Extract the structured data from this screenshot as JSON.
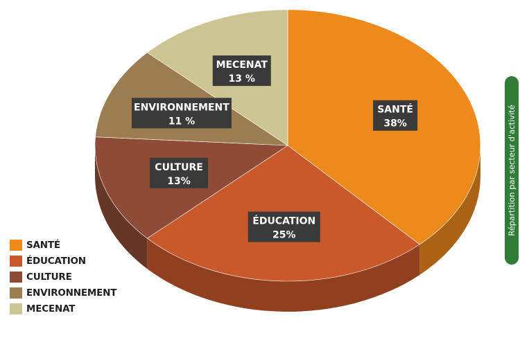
{
  "side_tab": {
    "label": "Répartition par secteur d'activité"
  },
  "colors": {
    "sante": "#ec8a1c",
    "education": "#c9582a",
    "culture": "#8e4b35",
    "environnement": "#9c7d52",
    "mecenat": "#cdc494",
    "label_box": "#3a3a3a",
    "tab": "#2f7d36"
  },
  "chart_data": {
    "type": "pie",
    "title": "",
    "start_angle": "12 o'clock",
    "direction": "clockwise",
    "slices": [
      {
        "name": "SANTÉ",
        "label": "SANTÉ",
        "value": 38,
        "value_label": "38%",
        "color": "#ec8a1c"
      },
      {
        "name": "ÉDUCATION",
        "label": "ÉDUCATION",
        "value": 25,
        "value_label": "25%",
        "color": "#c9582a"
      },
      {
        "name": "CULTURE",
        "label": "CULTURE",
        "value": 13,
        "value_label": "13%",
        "color": "#8e4b35"
      },
      {
        "name": "ENVIRONNEMENT",
        "label": "ENVIRONNEMENT",
        "value": 11,
        "value_label": "11 %",
        "color": "#9c7d52"
      },
      {
        "name": "MECENAT",
        "label": "MECENAT",
        "value": 13,
        "value_label": "13 %",
        "color": "#cdc494"
      }
    ],
    "legend": {
      "placement": "bottom-left",
      "items": [
        "SANTÉ",
        "ÉDUCATION",
        "CULTURE",
        "ENVIRONNEMENT",
        "MECENAT"
      ]
    }
  }
}
